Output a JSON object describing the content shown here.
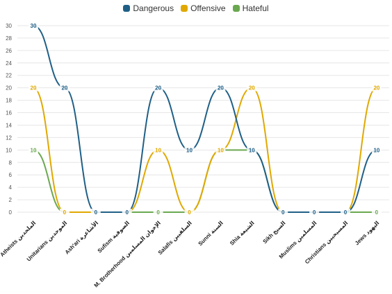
{
  "chart_data": {
    "type": "line",
    "categories": [
      "Atheists الملحدين",
      "Unitarians الموحدين",
      "Ash'ari الأشاعرة",
      "Sufism الصوفية",
      "M. Brotherhood الإخوان المسلمين",
      "Salafis السلفيين",
      "Sunni السنة",
      "Shia الشيعة",
      "Sikh السيخ",
      "Muslims المسلمين",
      "Christians المسيحيين",
      "Jews اليهود"
    ],
    "series": [
      {
        "name": "Dangerous",
        "color": "#1f5f86",
        "values": [
          30,
          20,
          0,
          0,
          20,
          10,
          20,
          10,
          0,
          0,
          0,
          10
        ]
      },
      {
        "name": "Offensive",
        "color": "#e0a800",
        "values": [
          20,
          0,
          0,
          0,
          10,
          0,
          10,
          20,
          0,
          0,
          0,
          20
        ]
      },
      {
        "name": "Hateful",
        "color": "#6aa84f",
        "values": [
          10,
          0,
          0,
          0,
          0,
          0,
          10,
          10,
          0,
          0,
          0,
          0
        ]
      }
    ],
    "ylim": [
      0,
      30
    ],
    "yticks": [
      0,
      2,
      4,
      6,
      8,
      10,
      12,
      14,
      16,
      18,
      20,
      22,
      24,
      26,
      28,
      30
    ],
    "grid": true,
    "legend": "top-center",
    "title": "",
    "xlabel": "",
    "ylabel": ""
  }
}
